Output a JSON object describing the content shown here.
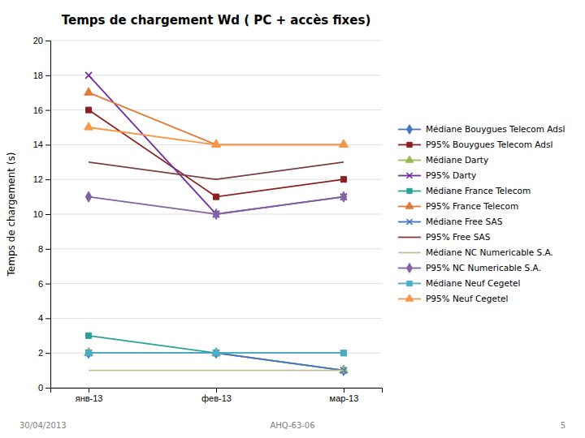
{
  "chart_data": {
    "type": "line",
    "title": "Temps de chargement Wd ( PC + accès fixes)",
    "y_label": "Temps de chargement (s)",
    "categories": [
      "янв-13",
      "фев-13",
      "мар-13"
    ],
    "ylim": [
      0,
      20
    ],
    "yticks": [
      0,
      2,
      4,
      6,
      8,
      10,
      12,
      14,
      16,
      18,
      20
    ],
    "grid": true,
    "legend": "right",
    "annotations": [
      "30/04/2013",
      "AHQ-63-06",
      "5"
    ],
    "series": [
      {
        "name": "Médiane Bouygues Telecom Adsl",
        "color": "#4472C4",
        "marker": "diamond",
        "values": [
          2.0,
          2.0,
          1.0
        ]
      },
      {
        "name": "P95% Bouygues Telecom Adsl",
        "color": "#8B2020",
        "marker": "square",
        "values": [
          16.0,
          11.0,
          12.0
        ]
      },
      {
        "name": "Médiane Darty",
        "color": "#9BBB59",
        "marker": "triangle",
        "values": [
          2.0,
          2.0,
          1.0
        ]
      },
      {
        "name": "P95% Darty",
        "color": "#7030A0",
        "marker": "x",
        "values": [
          18.0,
          10.0,
          11.0
        ]
      },
      {
        "name": "Médiane France Telecom",
        "color": "#2AA198",
        "marker": "square",
        "values": [
          3.0,
          2.0,
          2.0
        ]
      },
      {
        "name": "P95% France Telecom",
        "color": "#E07B39",
        "marker": "triangle",
        "values": [
          17.0,
          14.0,
          14.0
        ]
      },
      {
        "name": "Médiane Free SAS",
        "color": "#4472C4",
        "marker": "x",
        "values": [
          2.0,
          2.0,
          1.0
        ]
      },
      {
        "name": "P95% Free SAS",
        "color": "#7B3F3F",
        "marker": "none",
        "values": [
          13.0,
          12.0,
          13.0
        ]
      },
      {
        "name": "Médiane NC Numericable S.A.",
        "color": "#C4BD97",
        "marker": "none",
        "values": [
          1.0,
          1.0,
          1.0
        ]
      },
      {
        "name": "P95% NC Numericable S.A.",
        "color": "#8064A2",
        "marker": "diamond",
        "values": [
          11.0,
          10.0,
          11.0
        ]
      },
      {
        "name": "Médiane Neuf Cegetel",
        "color": "#4BACC6",
        "marker": "square",
        "values": [
          2.0,
          2.0,
          2.0
        ]
      },
      {
        "name": "P95% Neuf Cegetel",
        "color": "#F79646",
        "marker": "triangle",
        "values": [
          15.0,
          14.0,
          14.0
        ]
      }
    ]
  }
}
